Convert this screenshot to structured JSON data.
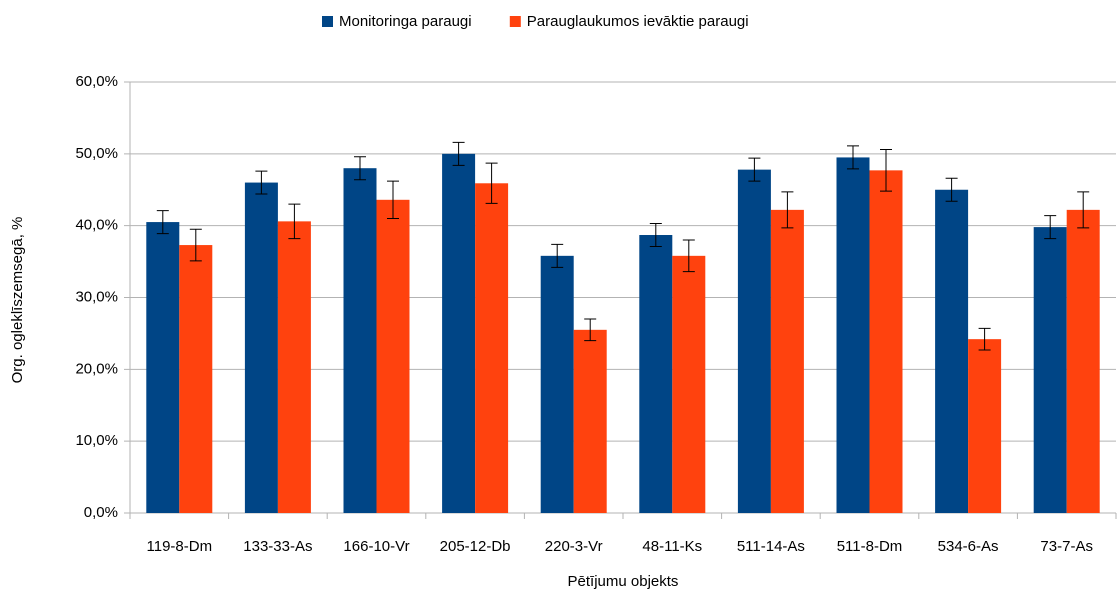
{
  "chart_data": {
    "type": "bar",
    "x_label": "Pētījumu objekts",
    "y_label": "Org. ogleklīszemsegā, %",
    "categories": [
      "119-8-Dm",
      "133-33-As",
      "166-10-Vr",
      "205-12-Db",
      "220-3-Vr",
      "48-11-Ks",
      "511-14-As",
      "511-8-Dm",
      "534-6-As",
      "73-7-As"
    ],
    "series": [
      {
        "name": "Monitoringa paraugi",
        "color": "#004586",
        "values": [
          40.5,
          46.0,
          48.0,
          50.0,
          35.8,
          38.7,
          47.8,
          49.5,
          45.0,
          39.8
        ],
        "errors": [
          1.6,
          1.6,
          1.6,
          1.6,
          1.6,
          1.6,
          1.6,
          1.6,
          1.6,
          1.6
        ]
      },
      {
        "name": "Parauglaukumos ievāktie paraugi",
        "color": "#ff420e",
        "values": [
          37.3,
          40.6,
          43.6,
          45.9,
          25.5,
          35.8,
          42.2,
          47.7,
          24.2,
          42.2
        ],
        "errors": [
          2.2,
          2.4,
          2.6,
          2.8,
          1.5,
          2.2,
          2.5,
          2.9,
          1.5,
          2.5
        ]
      }
    ],
    "ylim": [
      0,
      60
    ],
    "yticks": [
      {
        "value": 0,
        "label": "0,0%"
      },
      {
        "value": 10,
        "label": "10,0%"
      },
      {
        "value": 20,
        "label": "20,0%"
      },
      {
        "value": 30,
        "label": "30,0%"
      },
      {
        "value": 40,
        "label": "40,0%"
      },
      {
        "value": 50,
        "label": "50,0%"
      },
      {
        "value": 60,
        "label": "60,0%"
      }
    ],
    "grid": true,
    "legend": "top"
  }
}
